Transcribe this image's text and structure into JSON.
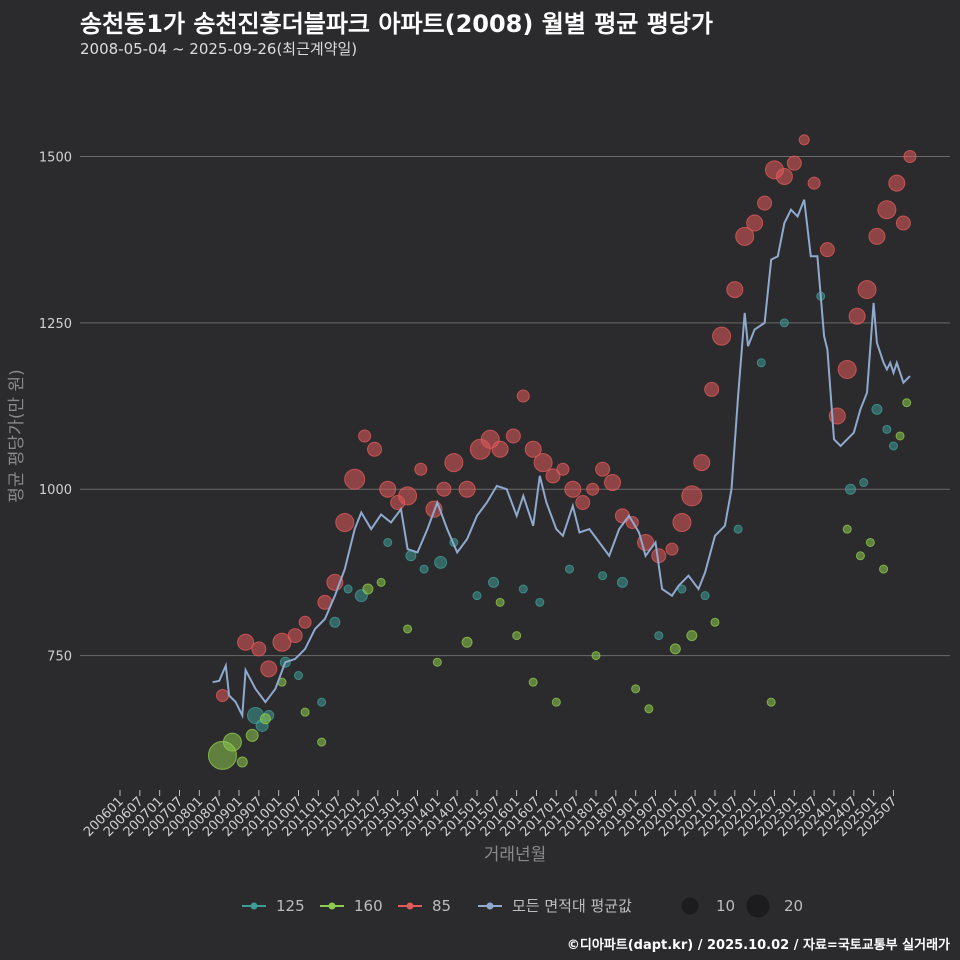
{
  "header": {
    "title": "송천동1가 송천진흥더블파크 아파트(2008) 월별 평균 평당가",
    "subtitle": "2008-05-04 ~ 2025-09-26(최근계약일)"
  },
  "footer": {
    "caption": "©디아파트(dapt.kr) / 2025.10.02 / 자료=국토교통부 실거래가"
  },
  "chart_data": {
    "type": "scatter",
    "xlabel": "거래년월",
    "ylabel": "평균 평당가(만 원)",
    "ylim": [
      560,
      1630
    ],
    "xlim": [
      "2006-01",
      "2025-12"
    ],
    "yticks": [
      750,
      1000,
      1250,
      1500
    ],
    "xticks": [
      "200601",
      "200607",
      "200701",
      "200707",
      "200801",
      "200807",
      "200901",
      "200907",
      "201001",
      "201007",
      "201101",
      "201107",
      "201201",
      "201207",
      "201301",
      "201307",
      "201401",
      "201407",
      "201501",
      "201507",
      "201601",
      "201607",
      "201701",
      "201707",
      "201801",
      "201807",
      "201901",
      "201907",
      "202001",
      "202007",
      "202101",
      "202107",
      "202201",
      "202207",
      "202301",
      "202307",
      "202401",
      "202407",
      "202501",
      "202507"
    ],
    "grid": true,
    "legend_position": "bottom",
    "colors": {
      "125": "#3e9b96",
      "160": "#8cc94c",
      "85": "#e05a5a",
      "avg": "#8fa9cf",
      "background": "#2b2a2c",
      "grid": "#6a6a6a"
    },
    "legend": {
      "series": [
        {
          "key": "125",
          "label": "125"
        },
        {
          "key": "160",
          "label": "160"
        },
        {
          "key": "85",
          "label": "85"
        },
        {
          "key": "avg",
          "label": "모든 면적대 평균값"
        }
      ],
      "sizes": [
        {
          "value": 10,
          "label": "10"
        },
        {
          "value": 20,
          "label": "20"
        }
      ]
    },
    "series": [
      {
        "name": "모든 면적대 평균값",
        "key": "avg",
        "kind": "line",
        "points": [
          [
            "2008-05",
            710
          ],
          [
            "2008-07",
            712
          ],
          [
            "2008-09",
            735
          ],
          [
            "2008-10",
            690
          ],
          [
            "2008-12",
            680
          ],
          [
            "2009-02",
            660
          ],
          [
            "2009-03",
            728
          ],
          [
            "2009-06",
            700
          ],
          [
            "2009-09",
            680
          ],
          [
            "2009-12",
            700
          ],
          [
            "2010-03",
            740
          ],
          [
            "2010-06",
            745
          ],
          [
            "2010-09",
            760
          ],
          [
            "2010-12",
            790
          ],
          [
            "2011-03",
            805
          ],
          [
            "2011-06",
            840
          ],
          [
            "2011-09",
            880
          ],
          [
            "2011-12",
            940
          ],
          [
            "2012-02",
            965
          ],
          [
            "2012-05",
            940
          ],
          [
            "2012-08",
            962
          ],
          [
            "2012-11",
            950
          ],
          [
            "2013-02",
            970
          ],
          [
            "2013-04",
            910
          ],
          [
            "2013-07",
            905
          ],
          [
            "2013-10",
            940
          ],
          [
            "2014-01",
            980
          ],
          [
            "2014-04",
            940
          ],
          [
            "2014-07",
            905
          ],
          [
            "2014-10",
            925
          ],
          [
            "2015-01",
            960
          ],
          [
            "2015-04",
            980
          ],
          [
            "2015-07",
            1005
          ],
          [
            "2015-10",
            1000
          ],
          [
            "2016-01",
            960
          ],
          [
            "2016-03",
            990
          ],
          [
            "2016-06",
            945
          ],
          [
            "2016-08",
            1020
          ],
          [
            "2016-10",
            980
          ],
          [
            "2017-01",
            940
          ],
          [
            "2017-03",
            930
          ],
          [
            "2017-06",
            975
          ],
          [
            "2017-08",
            935
          ],
          [
            "2017-11",
            940
          ],
          [
            "2018-02",
            920
          ],
          [
            "2018-05",
            900
          ],
          [
            "2018-08",
            940
          ],
          [
            "2018-11",
            960
          ],
          [
            "2019-02",
            935
          ],
          [
            "2019-04",
            900
          ],
          [
            "2019-07",
            920
          ],
          [
            "2019-09",
            850
          ],
          [
            "2019-12",
            840
          ],
          [
            "2020-02",
            855
          ],
          [
            "2020-05",
            870
          ],
          [
            "2020-08",
            850
          ],
          [
            "2020-10",
            875
          ],
          [
            "2021-01",
            930
          ],
          [
            "2021-04",
            945
          ],
          [
            "2021-06",
            1000
          ],
          [
            "2021-08",
            1140
          ],
          [
            "2021-10",
            1265
          ],
          [
            "2021-11",
            1215
          ],
          [
            "2022-01",
            1240
          ],
          [
            "2022-04",
            1250
          ],
          [
            "2022-06",
            1345
          ],
          [
            "2022-08",
            1350
          ],
          [
            "2022-10",
            1400
          ],
          [
            "2022-12",
            1420
          ],
          [
            "2023-02",
            1410
          ],
          [
            "2023-04",
            1435
          ],
          [
            "2023-06",
            1350
          ],
          [
            "2023-08",
            1350
          ],
          [
            "2023-10",
            1230
          ],
          [
            "2023-11",
            1210
          ],
          [
            "2024-01",
            1075
          ],
          [
            "2024-03",
            1065
          ],
          [
            "2024-05",
            1075
          ],
          [
            "2024-07",
            1085
          ],
          [
            "2024-09",
            1120
          ],
          [
            "2024-11",
            1145
          ],
          [
            "2025-01",
            1280
          ],
          [
            "2025-02",
            1220
          ],
          [
            "2025-04",
            1190
          ],
          [
            "2025-05",
            1180
          ],
          [
            "2025-06",
            1190
          ],
          [
            "2025-07",
            1175
          ],
          [
            "2025-08",
            1190
          ],
          [
            "2025-10",
            1160
          ],
          [
            "2025-12",
            1170
          ]
        ]
      },
      {
        "name": "125",
        "key": "125",
        "kind": "scatter",
        "points": [
          [
            "2009-06",
            660,
            8
          ],
          [
            "2009-08",
            645,
            6
          ],
          [
            "2009-10",
            660,
            5
          ],
          [
            "2010-03",
            740,
            5
          ],
          [
            "2010-07",
            720,
            4
          ],
          [
            "2011-02",
            680,
            4
          ],
          [
            "2011-06",
            800,
            5
          ],
          [
            "2011-10",
            850,
            4
          ],
          [
            "2012-02",
            840,
            6
          ],
          [
            "2012-10",
            920,
            4
          ],
          [
            "2013-05",
            900,
            5
          ],
          [
            "2013-09",
            880,
            4
          ],
          [
            "2014-02",
            890,
            6
          ],
          [
            "2014-06",
            920,
            4
          ],
          [
            "2015-01",
            840,
            4
          ],
          [
            "2015-06",
            860,
            5
          ],
          [
            "2016-03",
            850,
            4
          ],
          [
            "2016-08",
            830,
            4
          ],
          [
            "2017-05",
            880,
            4
          ],
          [
            "2018-03",
            870,
            4
          ],
          [
            "2018-09",
            860,
            5
          ],
          [
            "2019-08",
            780,
            4
          ],
          [
            "2020-03",
            850,
            4
          ],
          [
            "2020-10",
            840,
            4
          ],
          [
            "2021-08",
            940,
            4
          ],
          [
            "2022-03",
            1190,
            4
          ],
          [
            "2022-10",
            1250,
            4
          ],
          [
            "2023-09",
            1290,
            4
          ],
          [
            "2024-06",
            1000,
            5
          ],
          [
            "2024-10",
            1010,
            4
          ],
          [
            "2025-02",
            1120,
            5
          ],
          [
            "2025-05",
            1090,
            4
          ],
          [
            "2025-07",
            1065,
            4
          ]
        ]
      },
      {
        "name": "160",
        "key": "160",
        "kind": "scatter",
        "points": [
          [
            "2008-08",
            600,
            14
          ],
          [
            "2008-11",
            620,
            9
          ],
          [
            "2009-02",
            590,
            5
          ],
          [
            "2009-05",
            630,
            6
          ],
          [
            "2009-09",
            655,
            5
          ],
          [
            "2010-02",
            710,
            4
          ],
          [
            "2010-09",
            665,
            4
          ],
          [
            "2011-02",
            620,
            4
          ],
          [
            "2012-04",
            850,
            5
          ],
          [
            "2012-08",
            860,
            4
          ],
          [
            "2013-04",
            790,
            4
          ],
          [
            "2014-01",
            740,
            4
          ],
          [
            "2014-10",
            770,
            5
          ],
          [
            "2015-08",
            830,
            4
          ],
          [
            "2016-01",
            780,
            4
          ],
          [
            "2016-06",
            710,
            4
          ],
          [
            "2017-01",
            680,
            4
          ],
          [
            "2018-01",
            750,
            4
          ],
          [
            "2019-01",
            700,
            4
          ],
          [
            "2019-05",
            670,
            4
          ],
          [
            "2020-01",
            760,
            5
          ],
          [
            "2020-06",
            780,
            5
          ],
          [
            "2021-01",
            800,
            4
          ],
          [
            "2022-06",
            680,
            4
          ],
          [
            "2024-05",
            940,
            4
          ],
          [
            "2024-09",
            900,
            4
          ],
          [
            "2024-12",
            920,
            4
          ],
          [
            "2025-04",
            880,
            4
          ],
          [
            "2025-09",
            1080,
            4
          ],
          [
            "2025-11",
            1130,
            4
          ]
        ]
      },
      {
        "name": "85",
        "key": "85",
        "kind": "scatter",
        "points": [
          [
            "2008-08",
            690,
            6
          ],
          [
            "2009-03",
            770,
            8
          ],
          [
            "2009-07",
            760,
            7
          ],
          [
            "2009-10",
            730,
            8
          ],
          [
            "2010-02",
            770,
            9
          ],
          [
            "2010-06",
            780,
            7
          ],
          [
            "2010-09",
            800,
            6
          ],
          [
            "2011-03",
            830,
            7
          ],
          [
            "2011-06",
            860,
            8
          ],
          [
            "2011-09",
            950,
            9
          ],
          [
            "2011-12",
            1015,
            10
          ],
          [
            "2012-03",
            1080,
            6
          ],
          [
            "2012-06",
            1060,
            7
          ],
          [
            "2012-10",
            1000,
            8
          ],
          [
            "2013-01",
            980,
            7
          ],
          [
            "2013-04",
            990,
            9
          ],
          [
            "2013-08",
            1030,
            6
          ],
          [
            "2013-12",
            970,
            8
          ],
          [
            "2014-03",
            1000,
            7
          ],
          [
            "2014-06",
            1040,
            9
          ],
          [
            "2014-10",
            1000,
            8
          ],
          [
            "2015-02",
            1060,
            10
          ],
          [
            "2015-05",
            1075,
            9
          ],
          [
            "2015-08",
            1060,
            8
          ],
          [
            "2015-12",
            1080,
            7
          ],
          [
            "2016-03",
            1140,
            6
          ],
          [
            "2016-06",
            1060,
            8
          ],
          [
            "2016-09",
            1040,
            9
          ],
          [
            "2016-12",
            1020,
            7
          ],
          [
            "2017-03",
            1030,
            6
          ],
          [
            "2017-06",
            1000,
            8
          ],
          [
            "2017-09",
            980,
            7
          ],
          [
            "2017-12",
            1000,
            6
          ],
          [
            "2018-03",
            1030,
            7
          ],
          [
            "2018-06",
            1010,
            8
          ],
          [
            "2018-09",
            960,
            7
          ],
          [
            "2018-12",
            950,
            6
          ],
          [
            "2019-04",
            920,
            8
          ],
          [
            "2019-08",
            900,
            7
          ],
          [
            "2019-12",
            910,
            6
          ],
          [
            "2020-03",
            950,
            9
          ],
          [
            "2020-06",
            990,
            10
          ],
          [
            "2020-09",
            1040,
            8
          ],
          [
            "2020-12",
            1150,
            7
          ],
          [
            "2021-03",
            1230,
            9
          ],
          [
            "2021-07",
            1300,
            8
          ],
          [
            "2021-10",
            1380,
            9
          ],
          [
            "2022-01",
            1400,
            8
          ],
          [
            "2022-04",
            1430,
            7
          ],
          [
            "2022-07",
            1480,
            9
          ],
          [
            "2022-10",
            1470,
            8
          ],
          [
            "2023-01",
            1490,
            7
          ],
          [
            "2023-04",
            1525,
            5
          ],
          [
            "2023-07",
            1460,
            6
          ],
          [
            "2023-11",
            1360,
            7
          ],
          [
            "2024-02",
            1110,
            8
          ],
          [
            "2024-05",
            1180,
            9
          ],
          [
            "2024-08",
            1260,
            8
          ],
          [
            "2024-11",
            1300,
            9
          ],
          [
            "2025-02",
            1380,
            8
          ],
          [
            "2025-05",
            1420,
            9
          ],
          [
            "2025-08",
            1460,
            8
          ],
          [
            "2025-10",
            1400,
            7
          ],
          [
            "2025-12",
            1500,
            6
          ]
        ]
      }
    ]
  }
}
